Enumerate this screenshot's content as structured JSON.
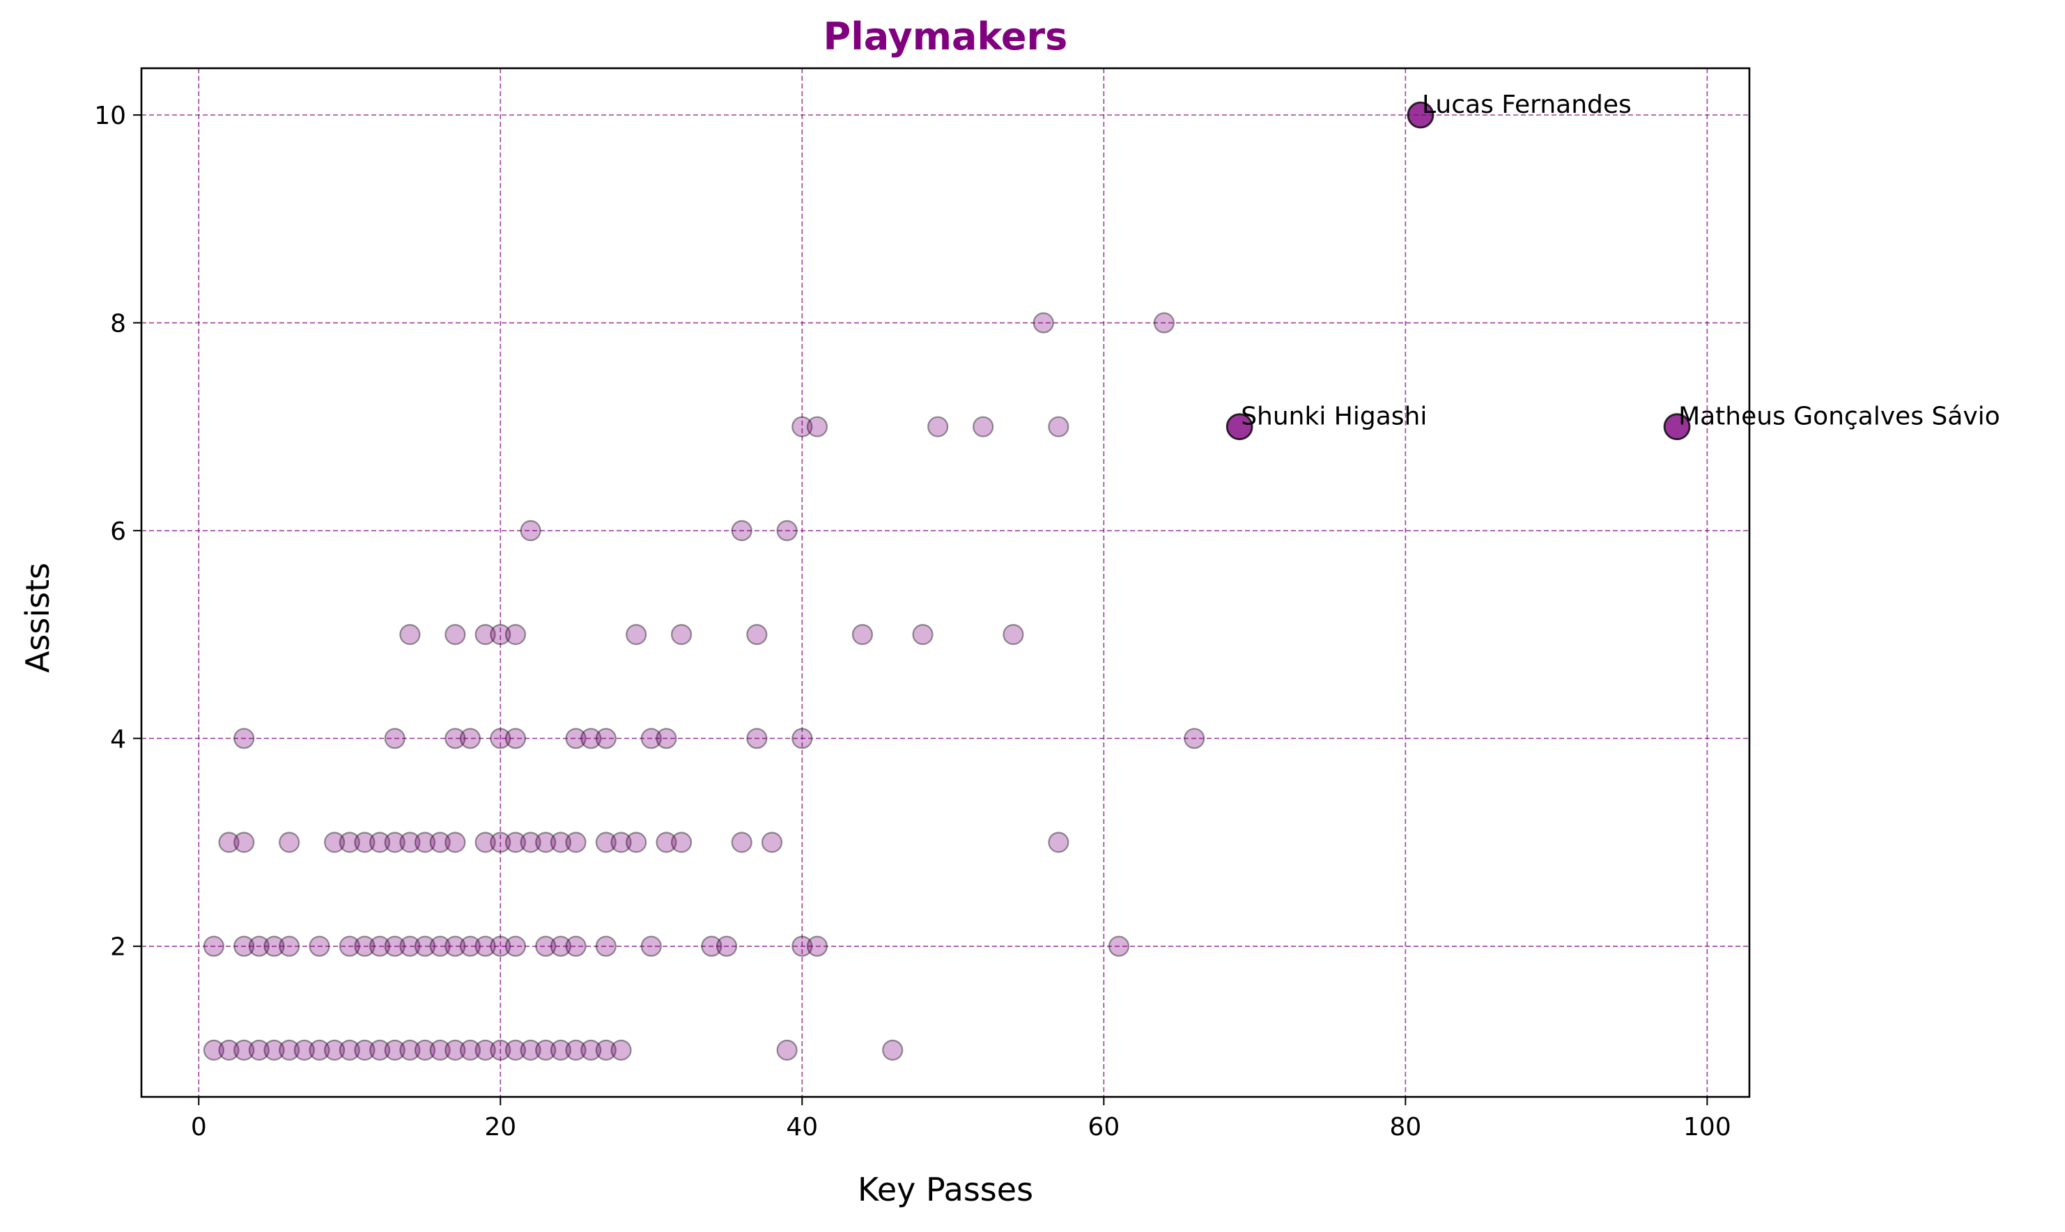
{
  "chart_data": {
    "type": "scatter",
    "title": "Playmakers",
    "xlabel": "Key Passes",
    "ylabel": "Assists",
    "xlim": [
      -3.8,
      102.8
    ],
    "ylim": [
      0.55,
      10.45
    ],
    "xticks": [
      0,
      20,
      40,
      60,
      80,
      100
    ],
    "yticks": [
      2,
      4,
      6,
      8,
      10
    ],
    "grid": true,
    "colors": {
      "title": "#800080",
      "point_fill": "#800080",
      "grid": "#800080",
      "axis": "#000000"
    },
    "series": [
      {
        "values": [
          [
            1,
            1
          ],
          [
            2,
            1
          ],
          [
            3,
            1
          ],
          [
            4,
            1
          ],
          [
            5,
            1
          ],
          [
            6,
            1
          ],
          [
            7,
            1
          ],
          [
            8,
            1
          ],
          [
            9,
            1
          ],
          [
            10,
            1
          ],
          [
            11,
            1
          ],
          [
            12,
            1
          ],
          [
            13,
            1
          ],
          [
            14,
            1
          ],
          [
            15,
            1
          ],
          [
            16,
            1
          ],
          [
            17,
            1
          ],
          [
            18,
            1
          ],
          [
            19,
            1
          ],
          [
            20,
            1
          ],
          [
            21,
            1
          ],
          [
            22,
            1
          ],
          [
            23,
            1
          ],
          [
            24,
            1
          ],
          [
            25,
            1
          ],
          [
            26,
            1
          ],
          [
            27,
            1
          ],
          [
            28,
            1
          ],
          [
            39,
            1
          ],
          [
            46,
            1
          ],
          [
            1,
            2
          ],
          [
            3,
            2
          ],
          [
            4,
            2
          ],
          [
            5,
            2
          ],
          [
            6,
            2
          ],
          [
            8,
            2
          ],
          [
            10,
            2
          ],
          [
            11,
            2
          ],
          [
            12,
            2
          ],
          [
            13,
            2
          ],
          [
            14,
            2
          ],
          [
            15,
            2
          ],
          [
            16,
            2
          ],
          [
            17,
            2
          ],
          [
            18,
            2
          ],
          [
            19,
            2
          ],
          [
            20,
            2
          ],
          [
            21,
            2
          ],
          [
            23,
            2
          ],
          [
            24,
            2
          ],
          [
            25,
            2
          ],
          [
            27,
            2
          ],
          [
            30,
            2
          ],
          [
            34,
            2
          ],
          [
            35,
            2
          ],
          [
            40,
            2
          ],
          [
            41,
            2
          ],
          [
            61,
            2
          ],
          [
            2,
            3
          ],
          [
            3,
            3
          ],
          [
            6,
            3
          ],
          [
            9,
            3
          ],
          [
            10,
            3
          ],
          [
            11,
            3
          ],
          [
            12,
            3
          ],
          [
            13,
            3
          ],
          [
            14,
            3
          ],
          [
            15,
            3
          ],
          [
            16,
            3
          ],
          [
            17,
            3
          ],
          [
            19,
            3
          ],
          [
            20,
            3
          ],
          [
            21,
            3
          ],
          [
            22,
            3
          ],
          [
            23,
            3
          ],
          [
            24,
            3
          ],
          [
            25,
            3
          ],
          [
            27,
            3
          ],
          [
            28,
            3
          ],
          [
            29,
            3
          ],
          [
            31,
            3
          ],
          [
            32,
            3
          ],
          [
            36,
            3
          ],
          [
            38,
            3
          ],
          [
            57,
            3
          ],
          [
            3,
            4
          ],
          [
            13,
            4
          ],
          [
            17,
            4
          ],
          [
            18,
            4
          ],
          [
            20,
            4
          ],
          [
            21,
            4
          ],
          [
            25,
            4
          ],
          [
            26,
            4
          ],
          [
            27,
            4
          ],
          [
            30,
            4
          ],
          [
            31,
            4
          ],
          [
            37,
            4
          ],
          [
            40,
            4
          ],
          [
            66,
            4
          ],
          [
            14,
            5
          ],
          [
            17,
            5
          ],
          [
            19,
            5
          ],
          [
            20,
            5
          ],
          [
            21,
            5
          ],
          [
            29,
            5
          ],
          [
            32,
            5
          ],
          [
            37,
            5
          ],
          [
            44,
            5
          ],
          [
            48,
            5
          ],
          [
            54,
            5
          ],
          [
            22,
            6
          ],
          [
            36,
            6
          ],
          [
            39,
            6
          ],
          [
            40,
            7
          ],
          [
            41,
            7
          ],
          [
            49,
            7
          ],
          [
            52,
            7
          ],
          [
            57,
            7
          ],
          [
            56,
            8
          ],
          [
            64,
            8
          ]
        ]
      }
    ],
    "highlighted": [
      {
        "label": "Lucas Fernandes",
        "x": 81,
        "y": 10
      },
      {
        "label": "Shunki Higashi",
        "x": 69,
        "y": 7
      },
      {
        "label": "Matheus Gonçalves Sávio",
        "x": 98,
        "y": 7
      }
    ]
  }
}
